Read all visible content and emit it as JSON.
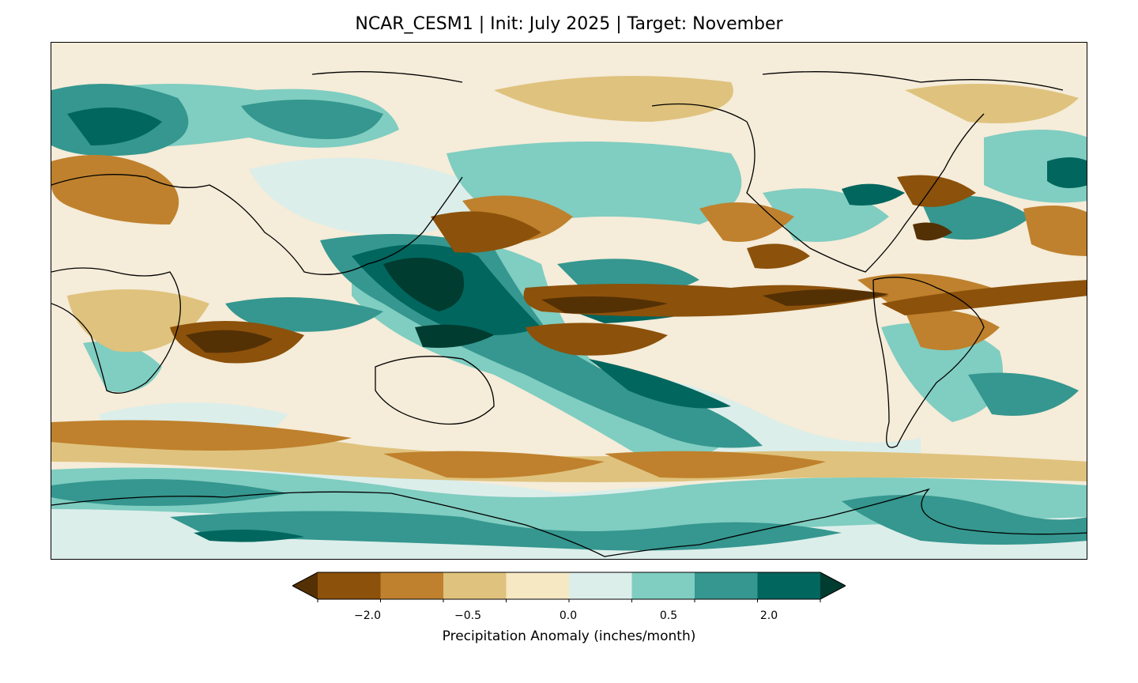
{
  "title": "NCAR_CESM1 | Init: July 2025 | Target: November",
  "colorbar": {
    "label": "Precipitation Anomaly (inches/month)",
    "tick_labels": [
      "−2.0",
      "−0.5",
      "0.0",
      "0.5",
      "2.0"
    ],
    "tick_values": [
      -2.0,
      -0.5,
      0.0,
      0.5,
      2.0
    ],
    "extend": "both",
    "colors": [
      "#543005",
      "#8c510a",
      "#bf812d",
      "#dfc27d",
      "#f6e8c3",
      "#dceeea",
      "#80cdc1",
      "#35978f",
      "#01665e",
      "#003c30"
    ]
  },
  "map": {
    "projection": "plate-carree",
    "center_longitude": 150,
    "features": [
      "coastlines",
      "country-borders"
    ]
  }
}
